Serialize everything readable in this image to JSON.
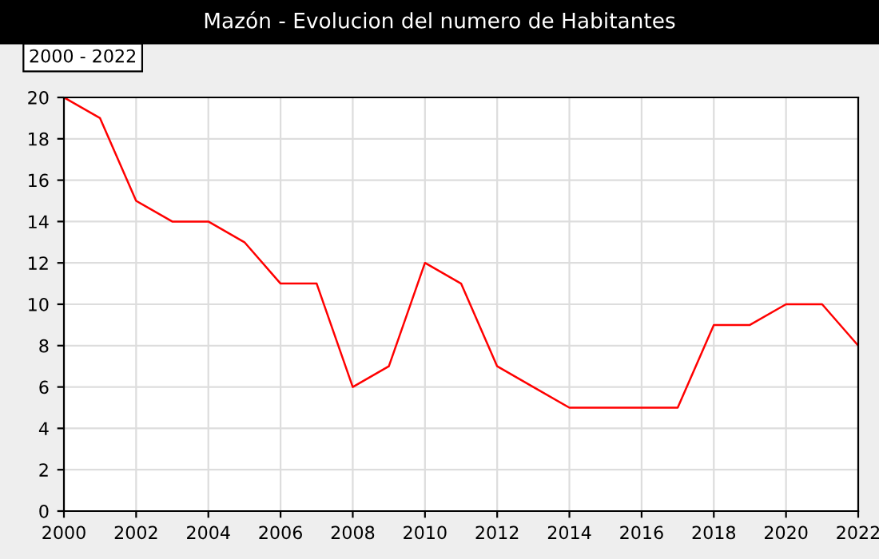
{
  "chart_data": {
    "type": "line",
    "title": "Mazón - Evolucion del numero de Habitantes",
    "annotations": [
      "2000 - 2022"
    ],
    "x": [
      2000,
      2001,
      2002,
      2003,
      2004,
      2005,
      2006,
      2007,
      2008,
      2009,
      2010,
      2011,
      2012,
      2013,
      2014,
      2015,
      2016,
      2017,
      2018,
      2019,
      2020,
      2021,
      2022
    ],
    "series": [
      {
        "color": "#ff0000",
        "values": [
          20,
          19,
          15,
          14,
          14,
          13,
          11,
          11,
          6,
          7,
          12,
          11,
          7,
          6,
          5,
          5,
          5,
          5,
          9,
          9,
          10,
          10,
          8
        ]
      }
    ],
    "xlim": [
      2000,
      2022
    ],
    "xticks": [
      2000,
      2002,
      2004,
      2006,
      2008,
      2010,
      2012,
      2014,
      2016,
      2018,
      2020,
      2022
    ],
    "ylim": [
      0,
      20
    ],
    "yticks": [
      0,
      2,
      4,
      6,
      8,
      10,
      12,
      14,
      16,
      18,
      20
    ],
    "grid": true,
    "marker": "none",
    "line_style": "solid"
  }
}
